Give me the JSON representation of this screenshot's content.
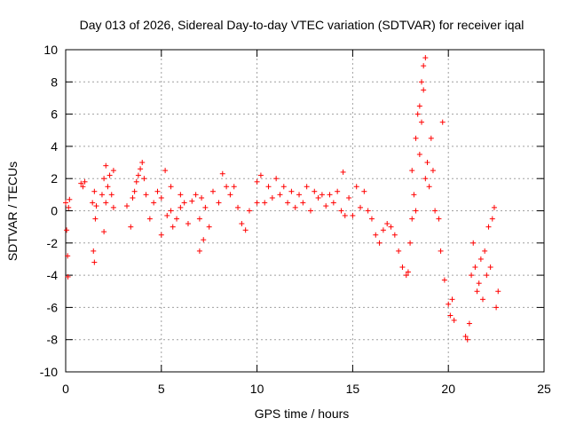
{
  "chart_data": {
    "type": "scatter",
    "title": "Day 013 of 2026, Sidereal Day-to-day VTEC variation (SDTVAR) for receiver iqal",
    "xlabel": "GPS time / hours",
    "ylabel": "SDTVAR / TECUs",
    "xlim": [
      0,
      25
    ],
    "ylim": [
      -10,
      10
    ],
    "xticks": [
      0,
      5,
      10,
      15,
      20,
      25
    ],
    "yticks": [
      -10,
      -8,
      -6,
      -4,
      -2,
      0,
      2,
      4,
      6,
      8,
      10
    ],
    "grid": true,
    "marker": "+",
    "series": [
      {
        "name": "SDTVAR",
        "color": "#ff0000",
        "x": [
          0.0,
          0.05,
          0.1,
          0.12,
          0.15,
          0.2,
          0.8,
          0.9,
          1.0,
          1.4,
          1.45,
          1.5,
          1.5,
          1.55,
          1.6,
          1.9,
          2.0,
          2.0,
          2.1,
          2.1,
          2.2,
          2.3,
          2.4,
          2.5,
          2.5,
          3.2,
          3.4,
          3.5,
          3.6,
          3.7,
          3.8,
          3.9,
          4.0,
          4.1,
          4.2,
          4.4,
          4.6,
          4.8,
          5.0,
          5.0,
          5.2,
          5.3,
          5.5,
          5.5,
          5.6,
          5.8,
          6.0,
          6.0,
          6.2,
          6.4,
          6.6,
          6.8,
          7.0,
          7.0,
          7.1,
          7.2,
          7.3,
          7.5,
          7.7,
          8.0,
          8.2,
          8.4,
          8.6,
          8.8,
          9.0,
          9.2,
          9.4,
          9.6,
          10.0,
          10.0,
          10.2,
          10.4,
          10.6,
          10.8,
          11.0,
          11.2,
          11.4,
          11.6,
          11.8,
          12.0,
          12.2,
          12.4,
          12.6,
          12.8,
          13.0,
          13.2,
          13.4,
          13.6,
          13.8,
          14.0,
          14.2,
          14.4,
          14.5,
          14.6,
          14.8,
          15.0,
          15.2,
          15.4,
          15.6,
          15.8,
          16.0,
          16.2,
          16.4,
          16.6,
          16.8,
          17.0,
          17.2,
          17.4,
          17.6,
          17.8,
          17.9,
          18.0,
          18.1,
          18.1,
          18.2,
          18.3,
          18.3,
          18.4,
          18.5,
          18.5,
          18.6,
          18.6,
          18.7,
          18.7,
          18.8,
          18.8,
          18.9,
          19.0,
          19.1,
          19.2,
          19.3,
          19.5,
          19.6,
          19.7,
          19.8,
          20.0,
          20.1,
          20.2,
          20.3,
          20.9,
          21.0,
          21.1,
          21.2,
          21.3,
          21.4,
          21.5,
          21.6,
          21.7,
          21.8,
          21.9,
          22.0,
          22.1,
          22.2,
          22.3,
          22.4,
          22.5,
          22.6
        ],
        "y": [
          0.5,
          -1.2,
          -2.8,
          -4.1,
          0.2,
          0.7,
          1.7,
          1.5,
          1.8,
          0.5,
          -2.5,
          -3.2,
          1.2,
          -0.5,
          0.3,
          1.0,
          -1.3,
          2.0,
          0.5,
          2.8,
          1.5,
          2.2,
          1.0,
          2.5,
          0.2,
          0.3,
          -1.0,
          0.8,
          1.2,
          1.8,
          2.2,
          2.6,
          3.0,
          2.0,
          1.0,
          -0.5,
          0.5,
          1.2,
          0.8,
          -1.5,
          2.5,
          -0.3,
          1.5,
          0.0,
          -1.0,
          -0.5,
          0.2,
          1.0,
          0.5,
          -0.8,
          0.6,
          1.0,
          -0.5,
          -2.5,
          0.8,
          -1.8,
          0.2,
          -1.0,
          1.2,
          0.5,
          2.3,
          1.5,
          1.0,
          1.5,
          0.2,
          -0.8,
          -1.2,
          0.0,
          0.5,
          1.8,
          2.2,
          0.5,
          1.5,
          0.8,
          2.0,
          1.0,
          1.5,
          0.5,
          1.2,
          0.2,
          1.0,
          0.5,
          1.5,
          0.0,
          1.2,
          0.8,
          1.0,
          0.3,
          1.0,
          0.5,
          1.2,
          0.0,
          2.4,
          -0.3,
          0.8,
          -0.3,
          1.5,
          0.2,
          1.2,
          0.0,
          -0.5,
          -1.5,
          -2.0,
          -1.2,
          -0.8,
          -1.0,
          -1.5,
          -2.5,
          -3.5,
          -4.0,
          -3.8,
          -2.0,
          -0.5,
          2.5,
          1.0,
          4.5,
          0.0,
          6.0,
          3.5,
          6.5,
          5.5,
          8.0,
          7.5,
          9.0,
          9.5,
          2.0,
          3.0,
          1.5,
          4.5,
          2.5,
          0.0,
          -0.5,
          -2.5,
          5.5,
          -4.3,
          -5.8,
          -6.5,
          -5.5,
          -6.8,
          -7.8,
          -8.0,
          -7.0,
          -4.0,
          -2.0,
          -3.5,
          -5.0,
          -4.5,
          -3.0,
          -5.5,
          -2.5,
          -4.0,
          -1.0,
          -3.5,
          -0.5,
          0.2,
          -6.0,
          -5.0
        ]
      }
    ]
  }
}
